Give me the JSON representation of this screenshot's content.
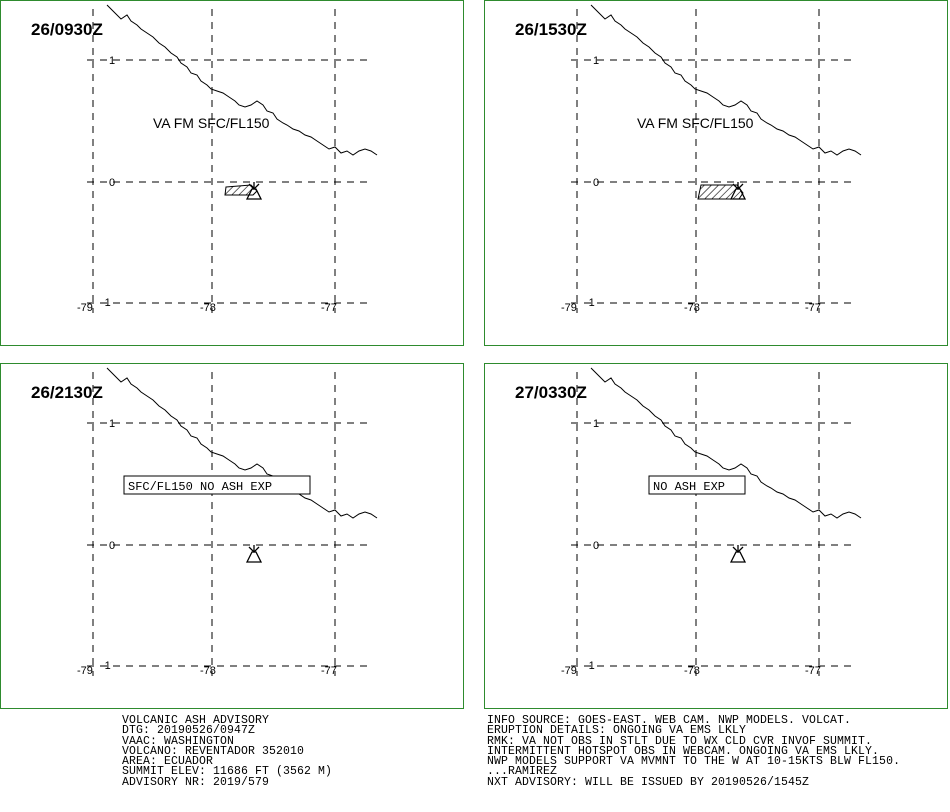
{
  "panels": [
    {
      "time": "26/0930Z",
      "label": "VA FM SFC/FL150",
      "label_boxed": false,
      "ash": "small"
    },
    {
      "time": "26/1530Z",
      "label": "VA FM SFC/FL150",
      "label_boxed": false,
      "ash": "large"
    },
    {
      "time": "26/2130Z",
      "label": "SFC/FL150 NO ASH EXP",
      "label_boxed": true,
      "ash": "none"
    },
    {
      "time": "27/0330Z",
      "label": "NO ASH EXP",
      "label_boxed": true,
      "ash": "none"
    }
  ],
  "axes": {
    "lat_labels": [
      "1",
      "0",
      "-1"
    ],
    "lon_labels": [
      "-79",
      "-78",
      "-77"
    ]
  },
  "colors": {
    "panel_border": "#2e8b2e",
    "lines": "#000000"
  },
  "icons": {
    "volcano": "volcano-symbol-icon"
  },
  "footer_left": [
    "VOLCANIC ASH ADVISORY",
    "DTG: 20190526/0947Z",
    "VAAC: WASHINGTON",
    "VOLCANO: REVENTADOR 352010",
    "AREA: ECUADOR",
    "SUMMIT ELEV: 11686 FT (3562 M)",
    "ADVISORY NR: 2019/579"
  ],
  "footer_right": [
    "INFO SOURCE: GOES-EAST. WEB CAM. NWP MODELS. VOLCAT.",
    "ERUPTION DETAILS: ONGOING VA EMS LKLY",
    "RMK: VA NOT OBS IN STLT DUE TO WX CLD CVR INVOF SUMMIT.",
    "INTERMITTENT HOTSPOT OBS IN WEBCAM. ONGOING VA EMS LKLY.",
    "NWP MODELS SUPPORT VA MVMNT TO THE W AT 10-15KTS BLW FL150.",
    "...RAMIREZ",
    "NXT ADVISORY: WILL BE ISSUED BY 20190526/1545Z"
  ]
}
